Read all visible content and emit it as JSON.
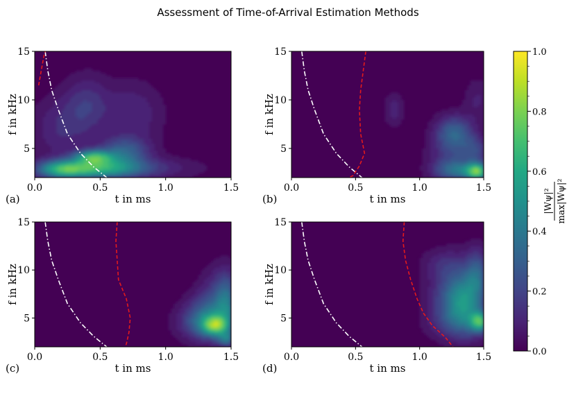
{
  "figure": {
    "title": "Assessment of Time-of-Arrival Estimation Methods",
    "colorbar": {
      "label_numerator": "|Wψ|²",
      "label_denominator": "max|Wψ|²",
      "ticks": [
        "0.0",
        "0.2",
        "0.4",
        "0.6",
        "0.8",
        "1.0"
      ],
      "colormap": [
        "#440154",
        "#482475",
        "#414487",
        "#355f8d",
        "#2a788e",
        "#21918c",
        "#22a884",
        "#44bf70",
        "#7ad151",
        "#bddf26",
        "#fde725"
      ]
    }
  },
  "chart_data": [
    {
      "type": "heatmap",
      "panel": "(a)",
      "xlabel": "t in ms",
      "ylabel": "f in kHz",
      "xlim": [
        0.0,
        1.5
      ],
      "ylim": [
        2,
        15
      ],
      "xticks": [
        "0.0",
        "0.5",
        "1.0",
        "1.5"
      ],
      "yticks": [
        "5",
        "10",
        "15"
      ],
      "blobs": [
        {
          "t": 0.45,
          "f": 2.9,
          "st": 0.25,
          "sf": 0.7,
          "a": 0.62
        },
        {
          "t": 0.2,
          "f": 2.8,
          "st": 0.12,
          "sf": 0.6,
          "a": 0.35
        },
        {
          "t": 0.45,
          "f": 4.1,
          "st": 0.1,
          "sf": 0.5,
          "a": 0.55
        },
        {
          "t": 0.68,
          "f": 4.6,
          "st": 0.13,
          "sf": 1.0,
          "a": 0.3
        },
        {
          "t": 0.4,
          "f": 9.5,
          "st": 0.12,
          "sf": 2.0,
          "a": 0.15
        },
        {
          "t": 0.2,
          "f": 7.0,
          "st": 0.15,
          "sf": 2.2,
          "a": 0.12
        },
        {
          "t": 0.75,
          "f": 8.5,
          "st": 0.15,
          "sf": 2.2,
          "a": 0.12
        },
        {
          "t": 0.95,
          "f": 3.0,
          "st": 0.25,
          "sf": 0.8,
          "a": 0.08
        }
      ],
      "red_curve": [
        [
          0.03,
          11.5
        ],
        [
          0.05,
          13
        ],
        [
          0.07,
          14.5
        ],
        [
          0.08,
          15
        ]
      ],
      "white_curve": [
        [
          0.08,
          15
        ],
        [
          0.1,
          13
        ],
        [
          0.13,
          11
        ],
        [
          0.18,
          9
        ],
        [
          0.25,
          6.5
        ],
        [
          0.35,
          4.5
        ],
        [
          0.45,
          3.1
        ],
        [
          0.55,
          2
        ]
      ]
    },
    {
      "type": "heatmap",
      "panel": "(b)",
      "xlabel": "t in ms",
      "ylabel": "f in kHz",
      "xlim": [
        0.0,
        1.5
      ],
      "ylim": [
        2,
        15
      ],
      "xticks": [
        "0.0",
        "0.5",
        "1.0",
        "1.5"
      ],
      "yticks": [
        "5",
        "10",
        "15"
      ],
      "blobs": [
        {
          "t": 1.45,
          "f": 2.6,
          "st": 0.06,
          "sf": 0.6,
          "a": 0.65
        },
        {
          "t": 1.3,
          "f": 2.7,
          "st": 0.12,
          "sf": 0.7,
          "a": 0.3
        },
        {
          "t": 1.27,
          "f": 6.6,
          "st": 0.1,
          "sf": 1.2,
          "a": 0.3
        },
        {
          "t": 1.25,
          "f": 4.0,
          "st": 0.12,
          "sf": 1.5,
          "a": 0.15
        },
        {
          "t": 1.43,
          "f": 4.8,
          "st": 0.07,
          "sf": 1.0,
          "a": 0.18
        },
        {
          "t": 0.8,
          "f": 9.0,
          "st": 0.05,
          "sf": 1.2,
          "a": 0.1
        },
        {
          "t": 1.45,
          "f": 10.0,
          "st": 0.07,
          "sf": 1.5,
          "a": 0.08
        }
      ],
      "red_curve": [
        [
          0.58,
          15
        ],
        [
          0.56,
          13
        ],
        [
          0.54,
          11
        ],
        [
          0.53,
          9
        ],
        [
          0.54,
          6.5
        ],
        [
          0.57,
          4.5
        ],
        [
          0.53,
          3.2
        ],
        [
          0.48,
          2.2
        ],
        [
          0.45,
          2
        ]
      ],
      "white_curve": [
        [
          0.08,
          15
        ],
        [
          0.1,
          13
        ],
        [
          0.13,
          11
        ],
        [
          0.18,
          9
        ],
        [
          0.25,
          6.5
        ],
        [
          0.35,
          4.5
        ],
        [
          0.45,
          3.1
        ],
        [
          0.55,
          2
        ]
      ]
    },
    {
      "type": "heatmap",
      "panel": "(c)",
      "xlabel": "t in ms",
      "ylabel": "f in kHz",
      "xlim": [
        0.0,
        1.5
      ],
      "ylim": [
        2,
        15
      ],
      "xticks": [
        "0.0",
        "0.5",
        "1.0",
        "1.5"
      ],
      "yticks": [
        "5",
        "10",
        "15"
      ],
      "blobs": [
        {
          "t": 1.38,
          "f": 4.2,
          "st": 0.07,
          "sf": 0.7,
          "a": 0.55
        },
        {
          "t": 1.35,
          "f": 5.2,
          "st": 0.12,
          "sf": 1.6,
          "a": 0.3
        },
        {
          "t": 1.47,
          "f": 6.5,
          "st": 0.06,
          "sf": 2.0,
          "a": 0.25
        },
        {
          "t": 1.25,
          "f": 4.5,
          "st": 0.12,
          "sf": 1.2,
          "a": 0.15
        },
        {
          "t": 1.42,
          "f": 8.0,
          "st": 0.1,
          "sf": 1.8,
          "a": 0.12
        },
        {
          "t": 1.47,
          "f": 2.8,
          "st": 0.05,
          "sf": 0.5,
          "a": 0.3
        }
      ],
      "red_curve": [
        [
          0.63,
          15
        ],
        [
          0.62,
          13
        ],
        [
          0.63,
          11
        ],
        [
          0.64,
          9
        ],
        [
          0.7,
          7
        ],
        [
          0.73,
          5
        ],
        [
          0.72,
          3.5
        ],
        [
          0.7,
          2.3
        ],
        [
          0.69,
          2
        ]
      ],
      "white_curve": [
        [
          0.08,
          15
        ],
        [
          0.1,
          13
        ],
        [
          0.13,
          11
        ],
        [
          0.18,
          9
        ],
        [
          0.25,
          6.5
        ],
        [
          0.35,
          4.5
        ],
        [
          0.45,
          3.1
        ],
        [
          0.55,
          2
        ]
      ]
    },
    {
      "type": "heatmap",
      "panel": "(d)",
      "xlabel": "t in ms",
      "ylabel": "f in kHz",
      "xlim": [
        0.0,
        1.5
      ],
      "ylim": [
        2,
        15
      ],
      "xticks": [
        "0.0",
        "0.5",
        "1.0",
        "1.5"
      ],
      "yticks": [
        "5",
        "10",
        "15"
      ],
      "blobs": [
        {
          "t": 1.47,
          "f": 4.6,
          "st": 0.05,
          "sf": 0.7,
          "a": 0.55
        },
        {
          "t": 1.36,
          "f": 6.8,
          "st": 0.1,
          "sf": 2.2,
          "a": 0.35
        },
        {
          "t": 1.25,
          "f": 7.0,
          "st": 0.12,
          "sf": 1.8,
          "a": 0.22
        },
        {
          "t": 1.45,
          "f": 9.5,
          "st": 0.06,
          "sf": 1.8,
          "a": 0.25
        },
        {
          "t": 1.2,
          "f": 10.5,
          "st": 0.12,
          "sf": 1.2,
          "a": 0.12
        },
        {
          "t": 1.3,
          "f": 4.5,
          "st": 0.15,
          "sf": 1.2,
          "a": 0.15
        }
      ],
      "red_curve": [
        [
          0.88,
          15
        ],
        [
          0.87,
          13
        ],
        [
          0.89,
          11
        ],
        [
          0.93,
          9
        ],
        [
          0.98,
          7
        ],
        [
          1.03,
          5.5
        ],
        [
          1.1,
          4.2
        ],
        [
          1.2,
          3.0
        ],
        [
          1.26,
          2
        ]
      ],
      "white_curve": [
        [
          0.08,
          15
        ],
        [
          0.1,
          13
        ],
        [
          0.13,
          11
        ],
        [
          0.18,
          9
        ],
        [
          0.25,
          6.5
        ],
        [
          0.35,
          4.5
        ],
        [
          0.45,
          3.1
        ],
        [
          0.55,
          2
        ]
      ]
    }
  ]
}
